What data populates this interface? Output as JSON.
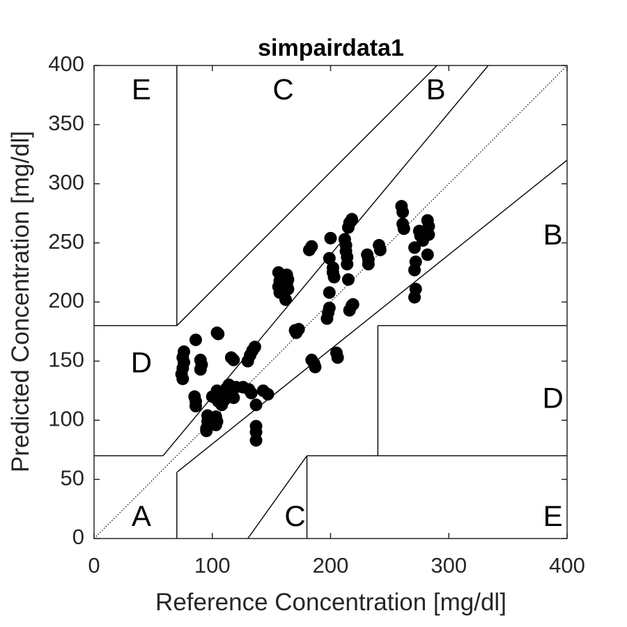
{
  "chart_data": {
    "type": "scatter",
    "title": "simpairdata1",
    "xlabel": "Reference Concentration [mg/dl]",
    "ylabel": "Predicted Concentration [mg/dl]",
    "xlim": [
      0,
      400
    ],
    "ylim": [
      0,
      400
    ],
    "xticks": [
      "0",
      "100",
      "200",
      "300",
      "400"
    ],
    "yticks": [
      "0",
      "50",
      "100",
      "150",
      "200",
      "250",
      "300",
      "350",
      "400"
    ],
    "grid": false,
    "marker_color": "#000000",
    "zone_labels": [
      {
        "text": "E",
        "x": 40,
        "y": 378
      },
      {
        "text": "C",
        "x": 160,
        "y": 378
      },
      {
        "text": "B",
        "x": 289,
        "y": 378
      },
      {
        "text": "B",
        "x": 388,
        "y": 255
      },
      {
        "text": "D",
        "x": 40,
        "y": 147
      },
      {
        "text": "D",
        "x": 388,
        "y": 117
      },
      {
        "text": "A",
        "x": 40,
        "y": 17
      },
      {
        "text": "C",
        "x": 170,
        "y": 17
      },
      {
        "text": "E",
        "x": 388,
        "y": 17
      }
    ],
    "zone_lines": [
      {
        "x": [
          0,
          400
        ],
        "y": [
          0,
          400
        ],
        "style": "dotted"
      },
      {
        "x": [
          70,
          70
        ],
        "y": [
          180,
          400
        ]
      },
      {
        "x": [
          70,
          70
        ],
        "y": [
          0,
          56
        ]
      },
      {
        "x": [
          0,
          70
        ],
        "y": [
          180,
          180
        ]
      },
      {
        "x": [
          0,
          58.33
        ],
        "y": [
          70,
          70
        ]
      },
      {
        "x": [
          58.33,
          333.33
        ],
        "y": [
          70,
          400
        ]
      },
      {
        "x": [
          70,
          400
        ],
        "y": [
          56,
          320
        ]
      },
      {
        "x": [
          70,
          290
        ],
        "y": [
          180,
          400
        ]
      },
      {
        "x": [
          130,
          180
        ],
        "y": [
          0,
          70
        ]
      },
      {
        "x": [
          180,
          180
        ],
        "y": [
          0,
          70
        ]
      },
      {
        "x": [
          180,
          400
        ],
        "y": [
          70,
          70
        ]
      },
      {
        "x": [
          240,
          240
        ],
        "y": [
          70,
          180
        ]
      },
      {
        "x": [
          240,
          400
        ],
        "y": [
          180,
          180
        ]
      }
    ],
    "points": [
      {
        "x": 76,
        "y": 158
      },
      {
        "x": 75,
        "y": 153
      },
      {
        "x": 76,
        "y": 149
      },
      {
        "x": 75,
        "y": 144
      },
      {
        "x": 74,
        "y": 139
      },
      {
        "x": 75,
        "y": 135
      },
      {
        "x": 86,
        "y": 168
      },
      {
        "x": 90,
        "y": 151
      },
      {
        "x": 91,
        "y": 147
      },
      {
        "x": 90,
        "y": 143
      },
      {
        "x": 85,
        "y": 120
      },
      {
        "x": 86,
        "y": 116
      },
      {
        "x": 86,
        "y": 112
      },
      {
        "x": 104,
        "y": 174
      },
      {
        "x": 105,
        "y": 173
      },
      {
        "x": 96,
        "y": 104
      },
      {
        "x": 98,
        "y": 101
      },
      {
        "x": 96,
        "y": 99
      },
      {
        "x": 97,
        "y": 96
      },
      {
        "x": 95,
        "y": 93
      },
      {
        "x": 95,
        "y": 91
      },
      {
        "x": 103,
        "y": 103
      },
      {
        "x": 104,
        "y": 99
      },
      {
        "x": 103,
        "y": 96
      },
      {
        "x": 100,
        "y": 120
      },
      {
        "x": 104,
        "y": 125
      },
      {
        "x": 106,
        "y": 122
      },
      {
        "x": 108,
        "y": 119
      },
      {
        "x": 105,
        "y": 116
      },
      {
        "x": 108,
        "y": 113
      },
      {
        "x": 110,
        "y": 117
      },
      {
        "x": 111,
        "y": 124
      },
      {
        "x": 112,
        "y": 127
      },
      {
        "x": 114,
        "y": 130
      },
      {
        "x": 116,
        "y": 126
      },
      {
        "x": 115,
        "y": 122
      },
      {
        "x": 118,
        "y": 119
      },
      {
        "x": 120,
        "y": 128
      },
      {
        "x": 116,
        "y": 153
      },
      {
        "x": 118,
        "y": 151
      },
      {
        "x": 126,
        "y": 128
      },
      {
        "x": 131,
        "y": 126
      },
      {
        "x": 133,
        "y": 123
      },
      {
        "x": 130,
        "y": 150
      },
      {
        "x": 132,
        "y": 155
      },
      {
        "x": 134,
        "y": 159
      },
      {
        "x": 136,
        "y": 162
      },
      {
        "x": 137,
        "y": 113
      },
      {
        "x": 137,
        "y": 95
      },
      {
        "x": 137,
        "y": 90
      },
      {
        "x": 137,
        "y": 83
      },
      {
        "x": 143,
        "y": 125
      },
      {
        "x": 147,
        "y": 122
      },
      {
        "x": 156,
        "y": 225
      },
      {
        "x": 157,
        "y": 218
      },
      {
        "x": 156,
        "y": 213
      },
      {
        "x": 157,
        "y": 208
      },
      {
        "x": 158,
        "y": 221
      },
      {
        "x": 163,
        "y": 223
      },
      {
        "x": 164,
        "y": 219
      },
      {
        "x": 163,
        "y": 215
      },
      {
        "x": 164,
        "y": 211
      },
      {
        "x": 162,
        "y": 202
      },
      {
        "x": 170,
        "y": 176
      },
      {
        "x": 171,
        "y": 174
      },
      {
        "x": 173,
        "y": 177
      },
      {
        "x": 182,
        "y": 244
      },
      {
        "x": 184,
        "y": 247
      },
      {
        "x": 184,
        "y": 151
      },
      {
        "x": 186,
        "y": 148
      },
      {
        "x": 187,
        "y": 145
      },
      {
        "x": 197,
        "y": 186
      },
      {
        "x": 198,
        "y": 191
      },
      {
        "x": 199,
        "y": 195
      },
      {
        "x": 199,
        "y": 208
      },
      {
        "x": 199,
        "y": 237
      },
      {
        "x": 200,
        "y": 254
      },
      {
        "x": 202,
        "y": 229
      },
      {
        "x": 202,
        "y": 225
      },
      {
        "x": 203,
        "y": 221
      },
      {
        "x": 205,
        "y": 157
      },
      {
        "x": 206,
        "y": 153
      },
      {
        "x": 212,
        "y": 253
      },
      {
        "x": 213,
        "y": 248
      },
      {
        "x": 213,
        "y": 243
      },
      {
        "x": 214,
        "y": 238
      },
      {
        "x": 214,
        "y": 232
      },
      {
        "x": 215,
        "y": 219
      },
      {
        "x": 215,
        "y": 263
      },
      {
        "x": 216,
        "y": 267
      },
      {
        "x": 218,
        "y": 270
      },
      {
        "x": 216,
        "y": 193
      },
      {
        "x": 218,
        "y": 197
      },
      {
        "x": 219,
        "y": 198
      },
      {
        "x": 231,
        "y": 240
      },
      {
        "x": 232,
        "y": 236
      },
      {
        "x": 232,
        "y": 232
      },
      {
        "x": 241,
        "y": 248
      },
      {
        "x": 242,
        "y": 244
      },
      {
        "x": 260,
        "y": 281
      },
      {
        "x": 261,
        "y": 276
      },
      {
        "x": 261,
        "y": 266
      },
      {
        "x": 262,
        "y": 262
      },
      {
        "x": 271,
        "y": 246
      },
      {
        "x": 272,
        "y": 234
      },
      {
        "x": 271,
        "y": 227
      },
      {
        "x": 272,
        "y": 211
      },
      {
        "x": 271,
        "y": 204
      },
      {
        "x": 275,
        "y": 260
      },
      {
        "x": 276,
        "y": 256
      },
      {
        "x": 278,
        "y": 252
      },
      {
        "x": 279,
        "y": 259
      },
      {
        "x": 282,
        "y": 269
      },
      {
        "x": 283,
        "y": 264
      },
      {
        "x": 283,
        "y": 257
      },
      {
        "x": 282,
        "y": 240
      }
    ]
  }
}
